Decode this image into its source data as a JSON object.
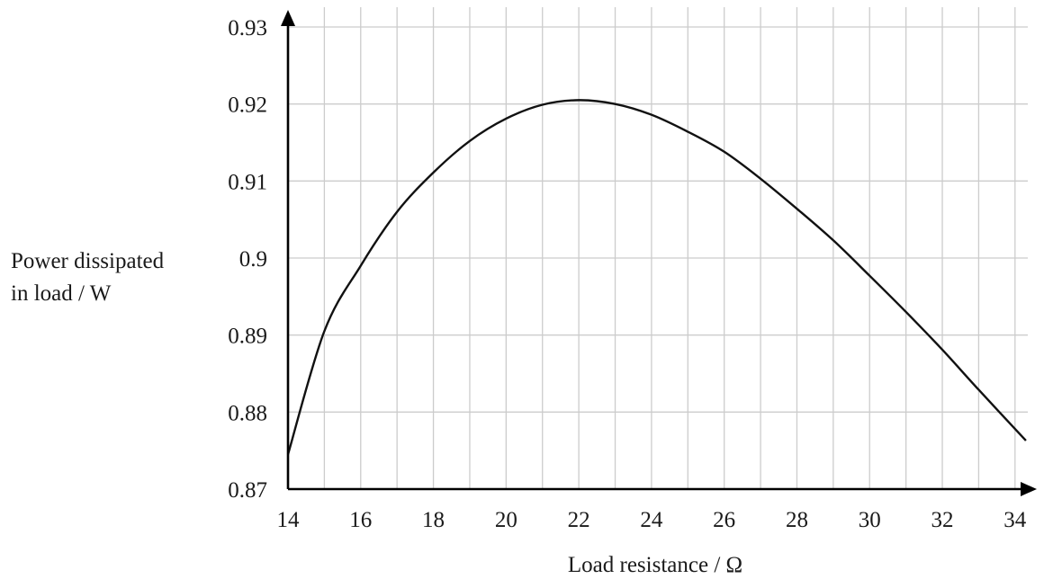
{
  "chart_data": {
    "type": "line",
    "title": "",
    "xlabel": "Load resistance / Ω",
    "ylabel_lines": [
      "Power dissipated",
      "in load / W"
    ],
    "xlim": [
      14,
      34.5
    ],
    "ylim": [
      0.87,
      0.93
    ],
    "x_ticks": [
      14,
      16,
      18,
      20,
      22,
      24,
      26,
      28,
      30,
      32,
      34
    ],
    "x_tick_labels": [
      "14",
      "16",
      "18",
      "20",
      "22",
      "24",
      "26",
      "28",
      "30",
      "32",
      "34"
    ],
    "y_ticks": [
      0.87,
      0.88,
      0.89,
      0.9,
      0.91,
      0.92,
      0.93
    ],
    "y_tick_labels": [
      "0.87",
      "0.88",
      "0.89",
      "0.9",
      "0.91",
      "0.92",
      "0.93"
    ],
    "grid": true,
    "series": [
      {
        "x": [
          14,
          15,
          16,
          17,
          18,
          19,
          20,
          21,
          22,
          23,
          24,
          25,
          26,
          27,
          28,
          29,
          30,
          31,
          32,
          33,
          34.3
        ],
        "y": [
          0.8745,
          0.8905,
          0.899,
          0.906,
          0.9111,
          0.9152,
          0.9181,
          0.9199,
          0.9205,
          0.92,
          0.9186,
          0.9164,
          0.9138,
          0.9103,
          0.9064,
          0.9023,
          0.8977,
          0.893,
          0.8881,
          0.8829,
          0.8763
        ]
      }
    ]
  }
}
